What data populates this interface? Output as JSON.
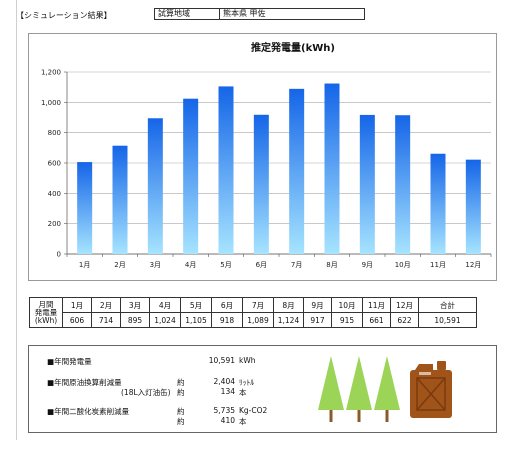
{
  "header": {
    "title": "【シミュレーション結果】",
    "location_label": "試算地域",
    "location_value": "熊本県 甲佐"
  },
  "chart_data": {
    "type": "bar",
    "title": "推定発電量(kWh)",
    "categories": [
      "1月",
      "2月",
      "3月",
      "4月",
      "5月",
      "6月",
      "7月",
      "8月",
      "9月",
      "10月",
      "11月",
      "12月"
    ],
    "values": [
      606,
      714,
      895,
      1024,
      1105,
      918,
      1089,
      1124,
      917,
      915,
      661,
      622
    ],
    "ylim": [
      0,
      1200
    ],
    "yticks": [
      0,
      200,
      400,
      600,
      800,
      1000,
      1200
    ],
    "ytick_labels": [
      "0",
      "200",
      "400",
      "600",
      "800",
      "1,000",
      "1,200"
    ],
    "grid": true,
    "bar_color_top": "#1565e8",
    "bar_color_bottom": "#a6e4ff"
  },
  "table": {
    "header_label_1": "月間",
    "header_label_2": "発電量",
    "unit_label": "(kWh)",
    "months": [
      "1月",
      "2月",
      "3月",
      "4月",
      "5月",
      "6月",
      "7月",
      "8月",
      "9月",
      "10月",
      "11月",
      "12月"
    ],
    "total_label": "合計",
    "values": [
      "606",
      "714",
      "895",
      "1,024",
      "1,105",
      "918",
      "1,089",
      "1,124",
      "917",
      "915",
      "661",
      "622"
    ],
    "total_value": "10,591"
  },
  "summary": {
    "annual_label": "■年間発電量",
    "annual_value": "10,591",
    "annual_unit": "kWh",
    "oil_label": "■年間原油換算削減量",
    "oil_sub": "(18L入灯油缶)",
    "approx": "約",
    "oil_value": "2,404",
    "oil_unit": "ﾘｯﾄﾙ",
    "oil_can_value": "134",
    "oil_can_unit": "本",
    "co2_label": "■年間二酸化炭素削減量",
    "co2_value": "5,735",
    "co2_unit": "Kg-CO2",
    "tree_value": "410",
    "tree_unit": "本",
    "tree_color": "#9bd456",
    "trunk_color": "#8a5a2b",
    "can_color": "#a0541a"
  }
}
